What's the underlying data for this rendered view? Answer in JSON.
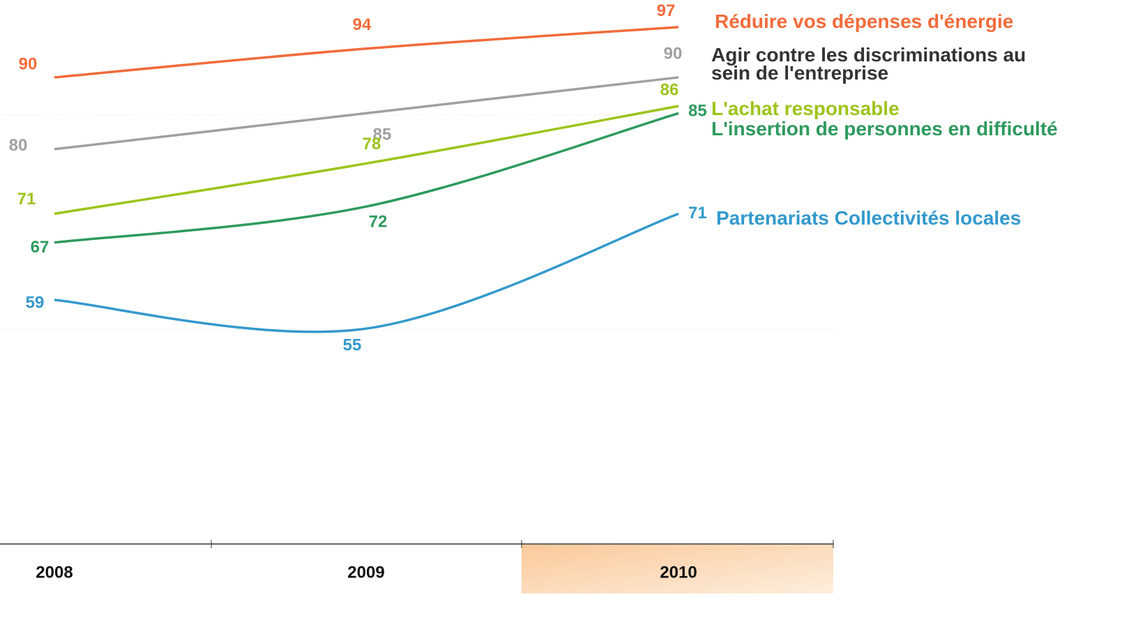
{
  "chart_data": {
    "type": "line",
    "categories": [
      "2008",
      "2009",
      "2010"
    ],
    "series": [
      {
        "name": "Réduire vos dépenses d'énergie",
        "color": "#f26b3a",
        "values": [
          90,
          94,
          97
        ]
      },
      {
        "name": "Agir contre les discriminations au sein de l'entreprise",
        "color": "#a0a0a0",
        "values": [
          80,
          85,
          90
        ]
      },
      {
        "name": "L'achat responsable",
        "color": "#9dc41a",
        "values": [
          71,
          78,
          86
        ]
      },
      {
        "name": "L'insertion de personnes en difficulté",
        "color": "#2e9a5e",
        "values": [
          67,
          72,
          85
        ]
      },
      {
        "name": "Partenariats Collectivités locales",
        "color": "#3399cc",
        "values": [
          59,
          55,
          71
        ]
      }
    ],
    "ylim": [
      25,
      100
    ]
  }
}
